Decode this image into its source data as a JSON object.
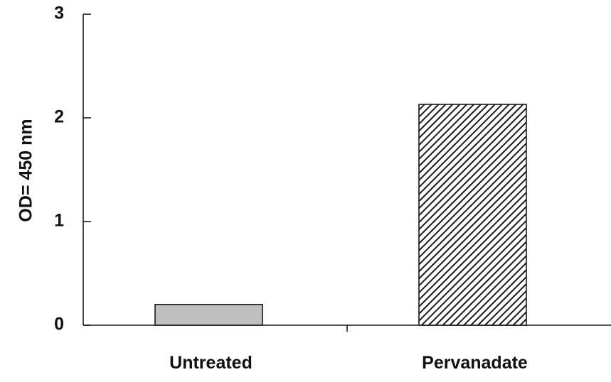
{
  "chart_data": {
    "type": "bar",
    "title": "",
    "xlabel": "",
    "ylabel": "OD= 450 nm",
    "ylim": [
      0,
      3
    ],
    "yticks": [
      0,
      1,
      2,
      3
    ],
    "categories": [
      "Untreated",
      "Pervanadate"
    ],
    "values": [
      0.2,
      2.13
    ],
    "bar_styles": [
      {
        "fill": "#bfbfbf",
        "pattern": "solid"
      },
      {
        "fill": "#ffffff",
        "pattern": "diagonal-hatch",
        "hatch_color": "#1a1a1a"
      }
    ],
    "grid": false,
    "legend": "none"
  }
}
